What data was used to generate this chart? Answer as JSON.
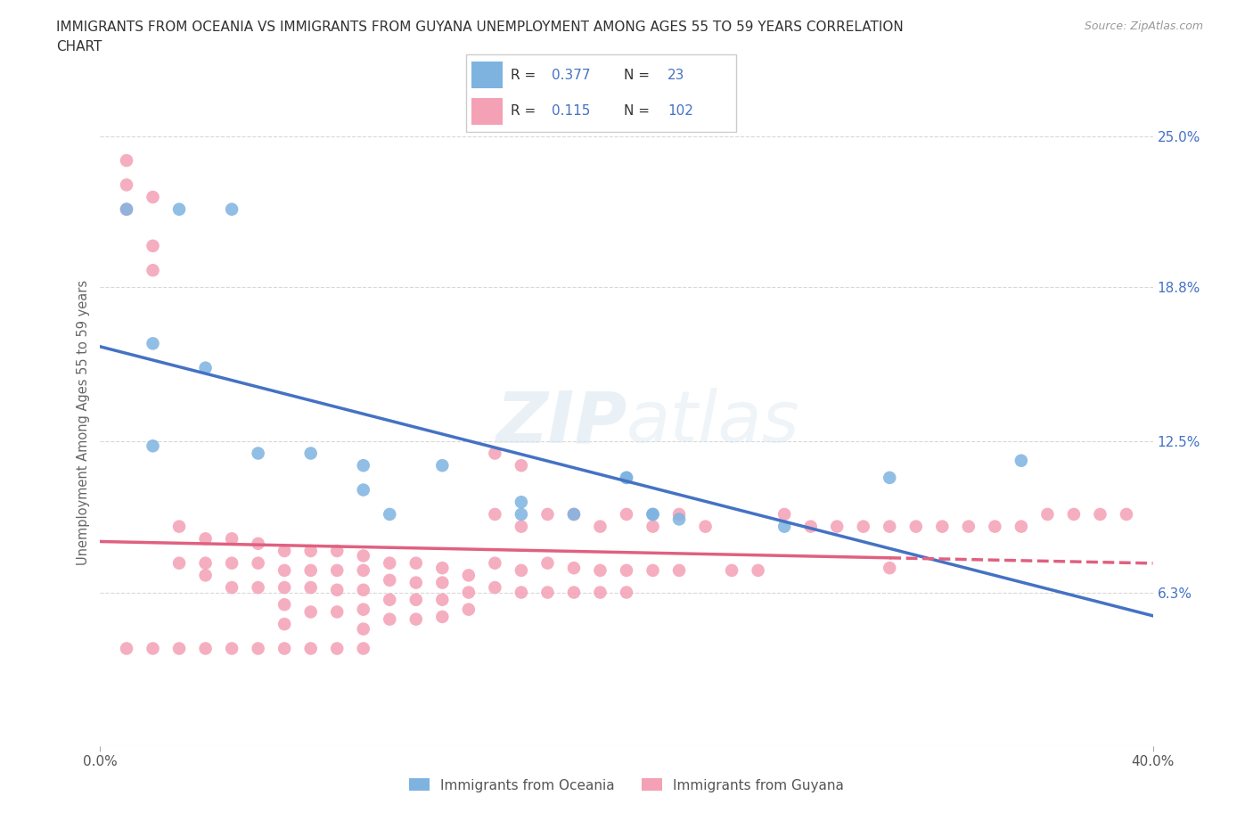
{
  "title_line1": "IMMIGRANTS FROM OCEANIA VS IMMIGRANTS FROM GUYANA UNEMPLOYMENT AMONG AGES 55 TO 59 YEARS CORRELATION",
  "title_line2": "CHART",
  "source": "Source: ZipAtlas.com",
  "ylabel": "Unemployment Among Ages 55 to 59 years",
  "xlim": [
    0,
    0.4
  ],
  "ylim": [
    0,
    0.265
  ],
  "oceania_color": "#7eb3e0",
  "guyana_color": "#f4a0b5",
  "oceania_line_color": "#4472c4",
  "guyana_line_color": "#e06080",
  "oceania_R": 0.377,
  "oceania_N": 23,
  "guyana_R": 0.115,
  "guyana_N": 102,
  "background_color": "#ffffff",
  "grid_color": "#d8d8d8",
  "ytick_vals": [
    0.0,
    0.063,
    0.125,
    0.188,
    0.25
  ],
  "oceania_x": [
    0.01,
    0.03,
    0.05,
    0.02,
    0.04,
    0.02,
    0.06,
    0.08,
    0.1,
    0.1,
    0.11,
    0.13,
    0.16,
    0.16,
    0.18,
    0.2,
    0.2,
    0.21,
    0.21,
    0.22,
    0.26,
    0.3,
    0.35
  ],
  "oceania_y": [
    0.22,
    0.22,
    0.22,
    0.165,
    0.155,
    0.123,
    0.12,
    0.12,
    0.115,
    0.105,
    0.095,
    0.115,
    0.1,
    0.095,
    0.095,
    0.11,
    0.11,
    0.095,
    0.095,
    0.093,
    0.09,
    0.11,
    0.117
  ],
  "guyana_x": [
    0.01,
    0.01,
    0.02,
    0.01,
    0.02,
    0.02,
    0.03,
    0.03,
    0.04,
    0.04,
    0.04,
    0.05,
    0.05,
    0.05,
    0.06,
    0.06,
    0.06,
    0.07,
    0.07,
    0.07,
    0.07,
    0.07,
    0.08,
    0.08,
    0.08,
    0.08,
    0.09,
    0.09,
    0.09,
    0.09,
    0.1,
    0.1,
    0.1,
    0.1,
    0.1,
    0.11,
    0.11,
    0.11,
    0.11,
    0.12,
    0.12,
    0.12,
    0.12,
    0.13,
    0.13,
    0.13,
    0.13,
    0.14,
    0.14,
    0.14,
    0.15,
    0.15,
    0.15,
    0.15,
    0.16,
    0.16,
    0.16,
    0.16,
    0.17,
    0.17,
    0.17,
    0.18,
    0.18,
    0.18,
    0.19,
    0.19,
    0.19,
    0.2,
    0.2,
    0.2,
    0.21,
    0.21,
    0.22,
    0.22,
    0.23,
    0.24,
    0.25,
    0.26,
    0.27,
    0.28,
    0.29,
    0.3,
    0.3,
    0.31,
    0.32,
    0.33,
    0.34,
    0.35,
    0.36,
    0.37,
    0.38,
    0.39,
    0.01,
    0.02,
    0.03,
    0.04,
    0.05,
    0.06,
    0.07,
    0.08,
    0.09,
    0.1
  ],
  "guyana_y": [
    0.23,
    0.24,
    0.225,
    0.22,
    0.205,
    0.195,
    0.09,
    0.075,
    0.085,
    0.075,
    0.07,
    0.085,
    0.075,
    0.065,
    0.083,
    0.075,
    0.065,
    0.08,
    0.072,
    0.065,
    0.058,
    0.05,
    0.08,
    0.072,
    0.065,
    0.055,
    0.08,
    0.072,
    0.064,
    0.055,
    0.078,
    0.072,
    0.064,
    0.056,
    0.048,
    0.075,
    0.068,
    0.06,
    0.052,
    0.075,
    0.067,
    0.06,
    0.052,
    0.073,
    0.067,
    0.06,
    0.053,
    0.07,
    0.063,
    0.056,
    0.12,
    0.095,
    0.075,
    0.065,
    0.115,
    0.09,
    0.072,
    0.063,
    0.095,
    0.075,
    0.063,
    0.095,
    0.073,
    0.063,
    0.09,
    0.072,
    0.063,
    0.095,
    0.072,
    0.063,
    0.09,
    0.072,
    0.095,
    0.072,
    0.09,
    0.072,
    0.072,
    0.095,
    0.09,
    0.09,
    0.09,
    0.09,
    0.073,
    0.09,
    0.09,
    0.09,
    0.09,
    0.09,
    0.095,
    0.095,
    0.095,
    0.095,
    0.04,
    0.04,
    0.04,
    0.04,
    0.04,
    0.04,
    0.04,
    0.04,
    0.04,
    0.04
  ]
}
